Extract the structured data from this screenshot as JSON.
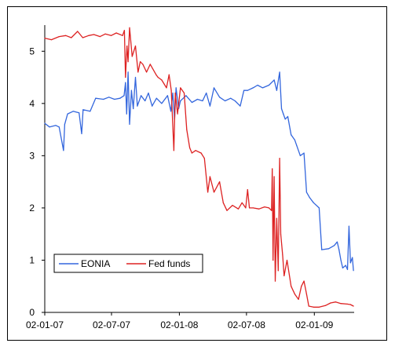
{
  "chart_data": {
    "type": "line",
    "title": "",
    "xlabel": "",
    "ylabel": "",
    "ylim": [
      0,
      5.5
    ],
    "xlim": [
      "2007-01-02",
      "2009-04-20"
    ],
    "y_ticks": [
      "0",
      "1",
      "2",
      "3",
      "4",
      "5"
    ],
    "x_ticks": [
      {
        "date": "2007-01-02",
        "label": "02-01-07"
      },
      {
        "date": "2007-07-02",
        "label": "02-07-07"
      },
      {
        "date": "2008-01-02",
        "label": "02-01-08"
      },
      {
        "date": "2008-07-02",
        "label": "02-07-08"
      },
      {
        "date": "2009-01-02",
        "label": "02-01-09"
      }
    ],
    "grid": false,
    "legend_position": "bottom-left",
    "series": [
      {
        "name": "EONIA",
        "color": "#3366dd",
        "points": [
          [
            "2007-01-02",
            3.62
          ],
          [
            "2007-01-15",
            3.55
          ],
          [
            "2007-02-01",
            3.58
          ],
          [
            "2007-02-10",
            3.55
          ],
          [
            "2007-02-22",
            3.1
          ],
          [
            "2007-02-25",
            3.6
          ],
          [
            "2007-03-05",
            3.8
          ],
          [
            "2007-03-20",
            3.85
          ],
          [
            "2007-04-05",
            3.82
          ],
          [
            "2007-04-12",
            3.42
          ],
          [
            "2007-04-16",
            3.88
          ],
          [
            "2007-05-05",
            3.85
          ],
          [
            "2007-05-20",
            4.1
          ],
          [
            "2007-06-10",
            4.08
          ],
          [
            "2007-06-25",
            4.12
          ],
          [
            "2007-07-10",
            4.08
          ],
          [
            "2007-07-25",
            4.1
          ],
          [
            "2007-08-05",
            4.15
          ],
          [
            "2007-08-09",
            4.4
          ],
          [
            "2007-08-12",
            3.8
          ],
          [
            "2007-08-16",
            4.6
          ],
          [
            "2007-08-20",
            3.6
          ],
          [
            "2007-08-25",
            4.25
          ],
          [
            "2007-08-30",
            3.9
          ],
          [
            "2007-09-05",
            4.5
          ],
          [
            "2007-09-10",
            3.95
          ],
          [
            "2007-09-20",
            4.15
          ],
          [
            "2007-10-01",
            4.05
          ],
          [
            "2007-10-10",
            4.2
          ],
          [
            "2007-10-20",
            3.95
          ],
          [
            "2007-11-01",
            4.1
          ],
          [
            "2007-11-15",
            4.0
          ],
          [
            "2007-12-01",
            4.15
          ],
          [
            "2007-12-10",
            3.85
          ],
          [
            "2007-12-15",
            4.2
          ],
          [
            "2007-12-20",
            3.7
          ],
          [
            "2007-12-24",
            4.3
          ],
          [
            "2007-12-31",
            3.9
          ],
          [
            "2008-01-05",
            4.05
          ],
          [
            "2008-01-20",
            4.15
          ],
          [
            "2008-02-05",
            4.02
          ],
          [
            "2008-02-20",
            4.08
          ],
          [
            "2008-03-05",
            4.05
          ],
          [
            "2008-03-15",
            4.2
          ],
          [
            "2008-03-25",
            3.95
          ],
          [
            "2008-04-05",
            4.3
          ],
          [
            "2008-04-20",
            4.12
          ],
          [
            "2008-05-05",
            4.05
          ],
          [
            "2008-05-20",
            4.1
          ],
          [
            "2008-06-01",
            4.05
          ],
          [
            "2008-06-15",
            3.95
          ],
          [
            "2008-06-25",
            4.25
          ],
          [
            "2008-07-05",
            4.25
          ],
          [
            "2008-07-20",
            4.3
          ],
          [
            "2008-08-01",
            4.35
          ],
          [
            "2008-08-15",
            4.3
          ],
          [
            "2008-09-01",
            4.35
          ],
          [
            "2008-09-15",
            4.45
          ],
          [
            "2008-09-22",
            4.25
          ],
          [
            "2008-09-30",
            4.6
          ],
          [
            "2008-10-05",
            3.9
          ],
          [
            "2008-10-10",
            3.8
          ],
          [
            "2008-10-15",
            3.7
          ],
          [
            "2008-10-22",
            3.75
          ],
          [
            "2008-10-31",
            3.4
          ],
          [
            "2008-11-10",
            3.3
          ],
          [
            "2008-11-15",
            3.2
          ],
          [
            "2008-11-25",
            3.0
          ],
          [
            "2008-12-05",
            3.05
          ],
          [
            "2008-12-12",
            2.3
          ],
          [
            "2008-12-20",
            2.2
          ],
          [
            "2008-12-31",
            2.1
          ],
          [
            "2009-01-15",
            2.0
          ],
          [
            "2009-01-22",
            1.2
          ],
          [
            "2009-02-10",
            1.22
          ],
          [
            "2009-02-25",
            1.28
          ],
          [
            "2009-03-05",
            1.35
          ],
          [
            "2009-03-10",
            1.2
          ],
          [
            "2009-03-15",
            1.0
          ],
          [
            "2009-03-20",
            0.85
          ],
          [
            "2009-03-28",
            0.9
          ],
          [
            "2009-04-02",
            0.82
          ],
          [
            "2009-04-06",
            1.65
          ],
          [
            "2009-04-10",
            0.95
          ],
          [
            "2009-04-15",
            1.05
          ],
          [
            "2009-04-18",
            0.8
          ]
        ]
      },
      {
        "name": "Fed funds",
        "color": "#dd2222",
        "points": [
          [
            "2007-01-02",
            5.25
          ],
          [
            "2007-01-20",
            5.22
          ],
          [
            "2007-02-10",
            5.28
          ],
          [
            "2007-02-28",
            5.3
          ],
          [
            "2007-03-15",
            5.26
          ],
          [
            "2007-04-01",
            5.38
          ],
          [
            "2007-04-15",
            5.26
          ],
          [
            "2007-05-01",
            5.3
          ],
          [
            "2007-05-15",
            5.32
          ],
          [
            "2007-06-01",
            5.28
          ],
          [
            "2007-06-15",
            5.33
          ],
          [
            "2007-07-01",
            5.3
          ],
          [
            "2007-07-15",
            5.35
          ],
          [
            "2007-08-01",
            5.3
          ],
          [
            "2007-08-06",
            5.4
          ],
          [
            "2007-08-09",
            4.5
          ],
          [
            "2007-08-13",
            5.1
          ],
          [
            "2007-08-16",
            4.8
          ],
          [
            "2007-08-20",
            5.45
          ],
          [
            "2007-08-27",
            4.9
          ],
          [
            "2007-09-05",
            5.1
          ],
          [
            "2007-09-12",
            4.6
          ],
          [
            "2007-09-18",
            4.8
          ],
          [
            "2007-09-25",
            4.75
          ],
          [
            "2007-10-05",
            4.6
          ],
          [
            "2007-10-15",
            4.75
          ],
          [
            "2007-10-31",
            4.55
          ],
          [
            "2007-11-05",
            4.5
          ],
          [
            "2007-11-15",
            4.45
          ],
          [
            "2007-11-28",
            4.3
          ],
          [
            "2007-12-05",
            4.55
          ],
          [
            "2007-12-11",
            4.25
          ],
          [
            "2007-12-18",
            3.1
          ],
          [
            "2007-12-22",
            4.2
          ],
          [
            "2007-12-28",
            3.8
          ],
          [
            "2008-01-05",
            4.3
          ],
          [
            "2008-01-15",
            4.2
          ],
          [
            "2008-01-22",
            3.5
          ],
          [
            "2008-01-30",
            3.15
          ],
          [
            "2008-02-05",
            3.05
          ],
          [
            "2008-02-15",
            3.1
          ],
          [
            "2008-03-01",
            3.05
          ],
          [
            "2008-03-10",
            2.95
          ],
          [
            "2008-03-19",
            2.3
          ],
          [
            "2008-03-25",
            2.6
          ],
          [
            "2008-04-05",
            2.3
          ],
          [
            "2008-04-20",
            2.5
          ],
          [
            "2008-04-30",
            2.1
          ],
          [
            "2008-05-10",
            1.95
          ],
          [
            "2008-05-25",
            2.05
          ],
          [
            "2008-06-10",
            1.98
          ],
          [
            "2008-06-20",
            2.1
          ],
          [
            "2008-06-30",
            2.0
          ],
          [
            "2008-07-05",
            2.35
          ],
          [
            "2008-07-10",
            2.0
          ],
          [
            "2008-07-20",
            2.0
          ],
          [
            "2008-08-05",
            1.98
          ],
          [
            "2008-08-20",
            2.02
          ],
          [
            "2008-09-01",
            2.0
          ],
          [
            "2008-09-08",
            1.95
          ],
          [
            "2008-09-10",
            2.75
          ],
          [
            "2008-09-12",
            1.0
          ],
          [
            "2008-09-15",
            2.6
          ],
          [
            "2008-09-18",
            0.6
          ],
          [
            "2008-09-22",
            1.8
          ],
          [
            "2008-09-26",
            0.8
          ],
          [
            "2008-09-30",
            2.95
          ],
          [
            "2008-10-03",
            1.5
          ],
          [
            "2008-10-08",
            1.1
          ],
          [
            "2008-10-12",
            0.7
          ],
          [
            "2008-10-20",
            1.0
          ],
          [
            "2008-10-31",
            0.5
          ],
          [
            "2008-11-10",
            0.35
          ],
          [
            "2008-11-20",
            0.25
          ],
          [
            "2008-11-28",
            0.5
          ],
          [
            "2008-12-05",
            0.6
          ],
          [
            "2008-12-12",
            0.35
          ],
          [
            "2008-12-18",
            0.12
          ],
          [
            "2008-12-31",
            0.1
          ],
          [
            "2009-01-15",
            0.1
          ],
          [
            "2009-02-01",
            0.13
          ],
          [
            "2009-02-15",
            0.18
          ],
          [
            "2009-03-01",
            0.2
          ],
          [
            "2009-03-15",
            0.17
          ],
          [
            "2009-04-01",
            0.16
          ],
          [
            "2009-04-10",
            0.15
          ],
          [
            "2009-04-18",
            0.12
          ]
        ]
      }
    ]
  }
}
